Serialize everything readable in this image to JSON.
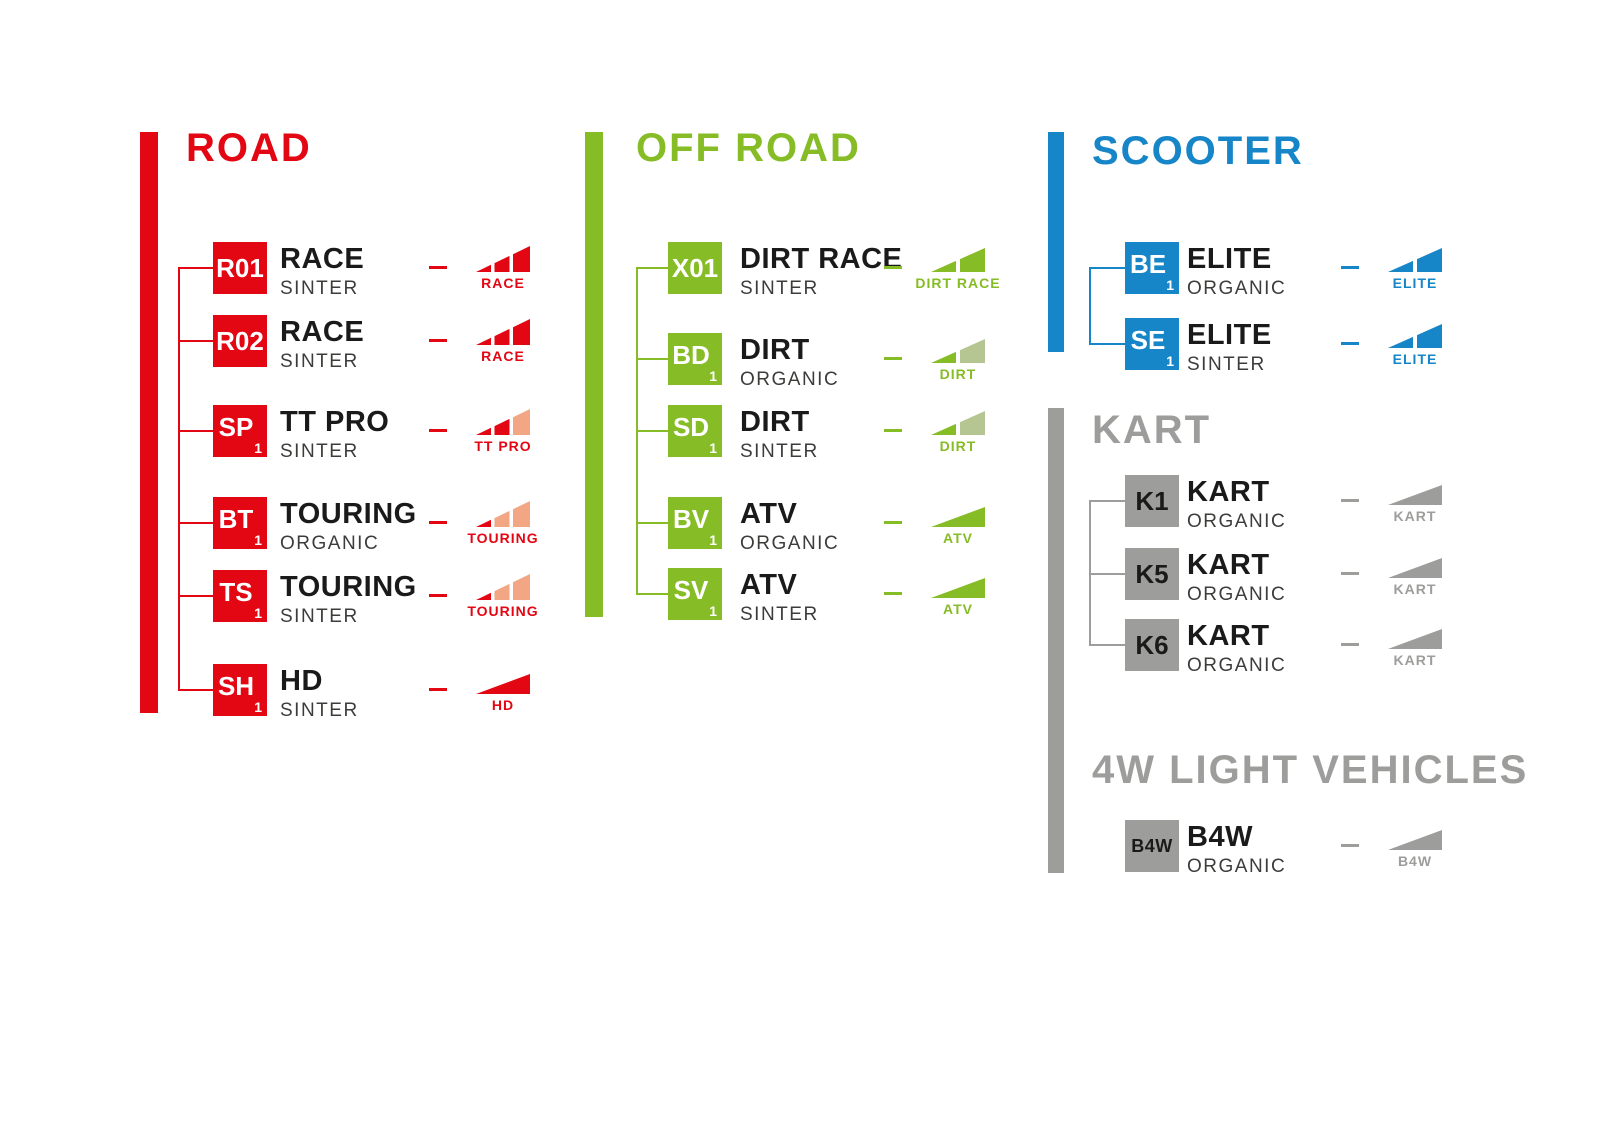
{
  "palette": {
    "background": "#ffffff",
    "title_text": "#1a1a1a",
    "subtitle_text": "#3c3c3b"
  },
  "sections": [
    {
      "key": "road",
      "header": "ROAD",
      "color": "#e30613",
      "light_color": "#f2a683",
      "box_text_color": "#ffffff",
      "items": [
        {
          "code": "R01",
          "subscript": "",
          "name": "RACE",
          "compound": "SINTER",
          "icon": {
            "shape": "ramp3",
            "label": "RACE",
            "segment_colors": [
              "#e30613",
              "#e30613",
              "#e30613"
            ]
          }
        },
        {
          "code": "R02",
          "subscript": "",
          "name": "RACE",
          "compound": "SINTER",
          "icon": {
            "shape": "ramp3",
            "label": "RACE",
            "segment_colors": [
              "#e30613",
              "#e30613",
              "#e30613"
            ]
          }
        },
        {
          "code": "SP",
          "subscript": "1",
          "name": "TT PRO",
          "compound": "SINTER",
          "icon": {
            "shape": "ramp3",
            "label": "TT PRO",
            "segment_colors": [
              "#e30613",
              "#e30613",
              "#f2a683"
            ]
          }
        },
        {
          "code": "BT",
          "subscript": "1",
          "name": "TOURING",
          "compound": "ORGANIC",
          "icon": {
            "shape": "ramp3",
            "label": "TOURING",
            "segment_colors": [
              "#e30613",
              "#f2a683",
              "#f2a683"
            ]
          }
        },
        {
          "code": "TS",
          "subscript": "1",
          "name": "TOURING",
          "compound": "SINTER",
          "icon": {
            "shape": "ramp3",
            "label": "TOURING",
            "segment_colors": [
              "#e30613",
              "#f2a683",
              "#f2a683"
            ]
          }
        },
        {
          "code": "SH",
          "subscript": "1",
          "name": "HD",
          "compound": "SINTER",
          "icon": {
            "shape": "tri",
            "label": "HD",
            "segment_colors": [
              "#e30613"
            ]
          }
        }
      ]
    },
    {
      "key": "offroad",
      "header": "OFF ROAD",
      "color": "#86bc25",
      "light_color": "#b6c693",
      "box_text_color": "#ffffff",
      "items": [
        {
          "code": "X01",
          "subscript": "",
          "name": "DIRT RACE",
          "compound": "SINTER",
          "icon": {
            "shape": "ramp2",
            "label": "DIRT RACE",
            "segment_colors": [
              "#86bc25",
              "#86bc25"
            ]
          }
        },
        {
          "code": "BD",
          "subscript": "1",
          "name": "DIRT",
          "compound": "ORGANIC",
          "icon": {
            "shape": "ramp2",
            "label": "DIRT",
            "segment_colors": [
              "#86bc25",
              "#b6c693"
            ]
          }
        },
        {
          "code": "SD",
          "subscript": "1",
          "name": "DIRT",
          "compound": "SINTER",
          "icon": {
            "shape": "ramp2",
            "label": "DIRT",
            "segment_colors": [
              "#86bc25",
              "#b6c693"
            ]
          }
        },
        {
          "code": "BV",
          "subscript": "1",
          "name": "ATV",
          "compound": "ORGANIC",
          "icon": {
            "shape": "tri",
            "label": "ATV",
            "segment_colors": [
              "#86bc25"
            ]
          }
        },
        {
          "code": "SV",
          "subscript": "1",
          "name": "ATV",
          "compound": "SINTER",
          "icon": {
            "shape": "tri",
            "label": "ATV",
            "segment_colors": [
              "#86bc25"
            ]
          }
        }
      ]
    },
    {
      "key": "scooter",
      "header": "SCOOTER",
      "color": "#1786c8",
      "box_text_color": "#ffffff",
      "items": [
        {
          "code": "BE",
          "subscript": "1",
          "name": "ELITE",
          "compound": "ORGANIC",
          "icon": {
            "shape": "ramp2",
            "label": "ELITE",
            "segment_colors": [
              "#1786c8",
              "#1786c8"
            ]
          }
        },
        {
          "code": "SE",
          "subscript": "1",
          "name": "ELITE",
          "compound": "SINTER",
          "icon": {
            "shape": "ramp2",
            "label": "ELITE",
            "segment_colors": [
              "#1786c8",
              "#1786c8"
            ]
          }
        }
      ]
    },
    {
      "key": "kart",
      "header": "KART",
      "color": "#9d9d9c",
      "box_text_color": "#1a1a1a",
      "items": [
        {
          "code": "K1",
          "subscript": "",
          "name": "KART",
          "compound": "ORGANIC",
          "icon": {
            "shape": "tri",
            "label": "KART",
            "segment_colors": [
              "#9d9d9c"
            ]
          }
        },
        {
          "code": "K5",
          "subscript": "",
          "name": "KART",
          "compound": "ORGANIC",
          "icon": {
            "shape": "tri",
            "label": "KART",
            "segment_colors": [
              "#9d9d9c"
            ]
          }
        },
        {
          "code": "K6",
          "subscript": "",
          "name": "KART",
          "compound": "ORGANIC",
          "icon": {
            "shape": "tri",
            "label": "KART",
            "segment_colors": [
              "#9d9d9c"
            ]
          }
        }
      ]
    },
    {
      "key": "b4w",
      "header": "4W LIGHT VEHICLES",
      "color": "#9d9d9c",
      "box_text_color": "#1a1a1a",
      "items": [
        {
          "code": "B4W",
          "subscript": "",
          "name": "B4W",
          "compound": "ORGANIC",
          "icon": {
            "shape": "tri",
            "label": "B4W",
            "segment_colors": [
              "#9d9d9c"
            ]
          }
        }
      ]
    }
  ]
}
